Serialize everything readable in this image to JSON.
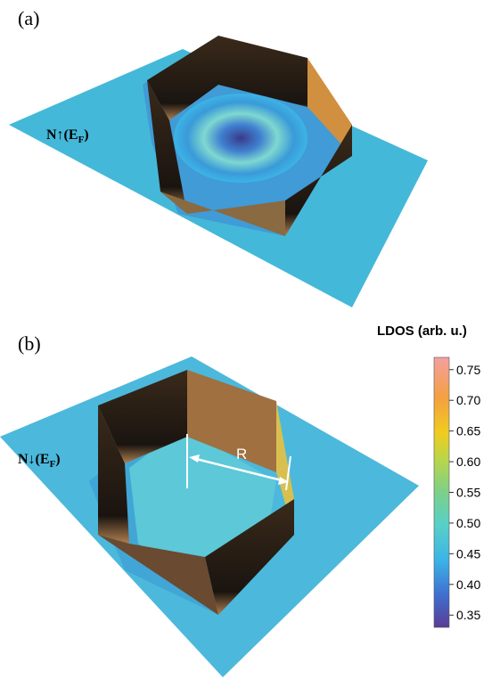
{
  "panels": [
    {
      "label": "(a)",
      "quantity": {
        "symbol": "N↑(E",
        "subscript": "F",
        "close": ")"
      }
    },
    {
      "label": "(b)",
      "quantity": {
        "symbol": "N↓(E",
        "subscript": "F",
        "close": ")"
      },
      "annotation": "R"
    }
  ],
  "colorbar": {
    "title": "LDOS (arb. u.)",
    "lim": [
      0.33,
      0.77
    ],
    "ticks": [
      0.35,
      {
        "value": 0.4,
        "label": "0.40"
      },
      0.45,
      {
        "value": 0.5,
        "label": "0.50"
      },
      0.55,
      {
        "value": 0.6,
        "label": "0.60"
      },
      0.65,
      {
        "value": 0.7,
        "label": "0.70"
      },
      0.75
    ]
  }
}
